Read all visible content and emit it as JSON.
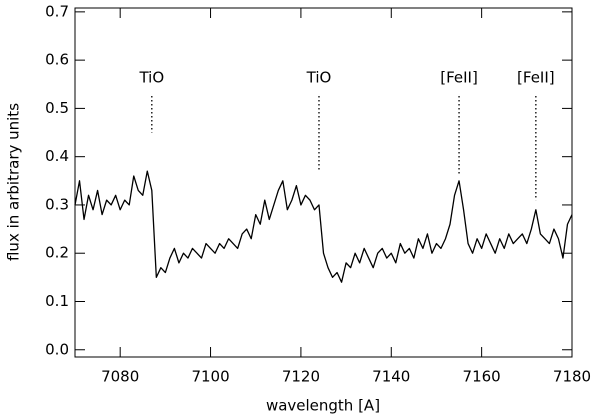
{
  "chart_data": {
    "type": "line",
    "xlabel": "wavelength [A]",
    "ylabel": "flux in arbitrary units",
    "color": "#000000",
    "xlim": [
      7070,
      7180
    ],
    "xticks": [
      7080,
      7100,
      7120,
      7140,
      7160,
      7180
    ],
    "ylim": [
      -0.015,
      0.708
    ],
    "yticks": [
      {
        "value": 0,
        "label": "0.0"
      },
      0.1,
      0.2,
      0.3,
      0.4,
      0.5,
      0.6,
      0.7
    ],
    "x": [
      7070,
      7071,
      7072,
      7073,
      7074,
      7075,
      7076,
      7077,
      7078,
      7079,
      7080,
      7081,
      7082,
      7083,
      7084,
      7085,
      7086,
      7087,
      7088,
      7089,
      7090,
      7091,
      7092,
      7093,
      7094,
      7095,
      7096,
      7097,
      7098,
      7099,
      7100,
      7101,
      7102,
      7103,
      7104,
      7105,
      7106,
      7107,
      7108,
      7109,
      7110,
      7111,
      7112,
      7113,
      7114,
      7115,
      7116,
      7117,
      7118,
      7119,
      7120,
      7121,
      7122,
      7123,
      7124,
      7125,
      7126,
      7127,
      7128,
      7129,
      7130,
      7131,
      7132,
      7133,
      7134,
      7135,
      7136,
      7137,
      7138,
      7139,
      7140,
      7141,
      7142,
      7143,
      7144,
      7145,
      7146,
      7147,
      7148,
      7149,
      7150,
      7151,
      7152,
      7153,
      7154,
      7155,
      7156,
      7157,
      7158,
      7159,
      7160,
      7161,
      7162,
      7163,
      7164,
      7165,
      7166,
      7167,
      7168,
      7169,
      7170,
      7171,
      7172,
      7173,
      7174,
      7175,
      7176,
      7177,
      7178,
      7179,
      7180
    ],
    "values": [
      0.3,
      0.35,
      0.27,
      0.32,
      0.29,
      0.33,
      0.28,
      0.31,
      0.3,
      0.32,
      0.29,
      0.31,
      0.3,
      0.36,
      0.33,
      0.32,
      0.37,
      0.33,
      0.15,
      0.17,
      0.16,
      0.19,
      0.21,
      0.18,
      0.2,
      0.19,
      0.21,
      0.2,
      0.19,
      0.22,
      0.21,
      0.2,
      0.22,
      0.21,
      0.23,
      0.22,
      0.21,
      0.24,
      0.25,
      0.23,
      0.28,
      0.26,
      0.31,
      0.27,
      0.3,
      0.33,
      0.35,
      0.29,
      0.31,
      0.34,
      0.3,
      0.32,
      0.31,
      0.29,
      0.3,
      0.2,
      0.17,
      0.15,
      0.16,
      0.14,
      0.18,
      0.17,
      0.2,
      0.18,
      0.21,
      0.19,
      0.17,
      0.2,
      0.21,
      0.19,
      0.2,
      0.18,
      0.22,
      0.2,
      0.21,
      0.19,
      0.23,
      0.21,
      0.24,
      0.2,
      0.22,
      0.21,
      0.23,
      0.26,
      0.32,
      0.35,
      0.29,
      0.22,
      0.2,
      0.23,
      0.21,
      0.24,
      0.22,
      0.2,
      0.23,
      0.21,
      0.24,
      0.22,
      0.23,
      0.24,
      0.22,
      0.25,
      0.29,
      0.24,
      0.23,
      0.22,
      0.25,
      0.23,
      0.19,
      0.26,
      0.28
    ],
    "annotations": [
      {
        "text": "TiO",
        "x": 7087,
        "y": 0.45
      },
      {
        "text": "TiO",
        "x": 7124,
        "y": 0.37
      },
      {
        "text": "[FeII]",
        "x": 7155,
        "y": 0.36
      },
      {
        "text": "[FeII]",
        "x": 7172,
        "y": 0.31
      }
    ]
  }
}
